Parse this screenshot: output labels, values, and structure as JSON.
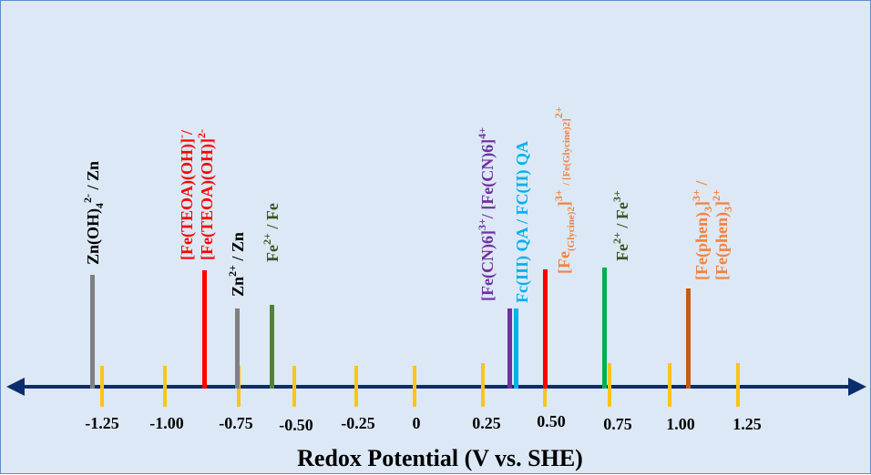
{
  "axis": {
    "title": "Redox Potential (V vs. SHE)",
    "tick_labels": [
      "-1.25",
      "-1.00",
      "-0.75",
      "-0.50",
      "-0.25",
      "0",
      "0.25",
      "0.50",
      "0.75",
      "1.00",
      "1.25"
    ],
    "line_color": "#0c2d6b",
    "tick_color": "#fcc419"
  },
  "couples": [
    {
      "id": "zn-oh4-zn",
      "text": "Zn(OH)4 2- / Zn",
      "color": "#808080",
      "label_color": "#000000"
    },
    {
      "id": "fe-teoa",
      "text": "[Fe(TEOA)(OH)]- / [Fe(TEOA)(OH)]2-",
      "color": "#ff0000",
      "label_color": "#ff0000"
    },
    {
      "id": "zn2-zn",
      "text": "Zn2+ / Zn",
      "color": "#808080",
      "label_color": "#000000"
    },
    {
      "id": "fe2-fe",
      "text": "Fe2+ / Fe",
      "color": "#548235",
      "label_color": "#375623"
    },
    {
      "id": "fe-cn6",
      "text": "[Fe(CN)6]3+/ [Fe(CN)6]4+",
      "color": "#7030a0",
      "label_color": "#7030a0"
    },
    {
      "id": "fc-qa",
      "text": "Fc(III) QA / FC(II) QA",
      "color": "#00b0f0",
      "label_color": "#00b0f0"
    },
    {
      "id": "fe-glycine",
      "text": "[Fe(Glycine)2]3+ / [Fe(Glycine)2]2+",
      "color": "#ff0000",
      "label_color": "#f4813c"
    },
    {
      "id": "fe3-fe2",
      "text": "Fe2+ / Fe3+",
      "color": "#00b050",
      "label_color": "#375623"
    },
    {
      "id": "fe-phen",
      "text": "[Fe(phen)3]3+ / [Fe(phen)3]2+",
      "color": "#c55a11",
      "label_color": "#f4813c"
    }
  ]
}
